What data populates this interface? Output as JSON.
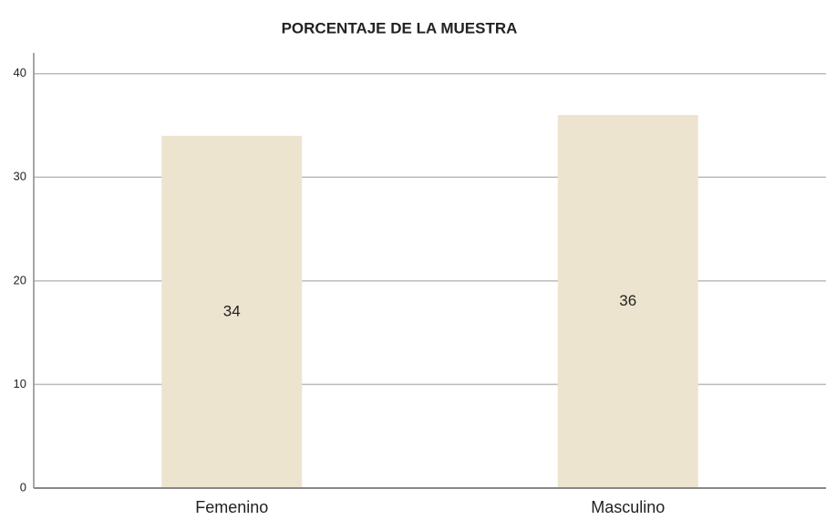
{
  "chart_data": {
    "type": "bar",
    "title": "PORCENTAJE DE LA MUESTRA",
    "categories": [
      "Femenino",
      "Masculino"
    ],
    "values": [
      34,
      36
    ],
    "color": "#ece4cf",
    "ylim": [
      0,
      42
    ],
    "yticks": [
      0,
      10,
      20,
      30,
      40
    ],
    "grid": true
  }
}
